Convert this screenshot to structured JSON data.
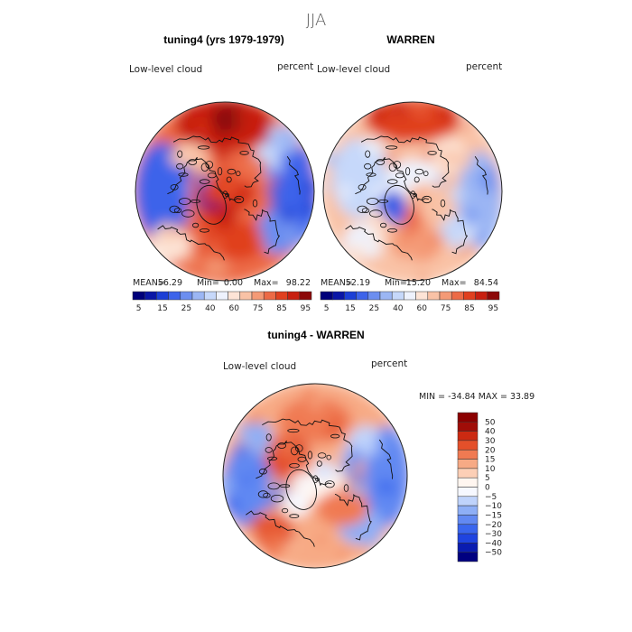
{
  "season": "JJA",
  "colors": {
    "seq": [
      "#00007a",
      "#0a16a6",
      "#1c3fd6",
      "#3d63ea",
      "#6c8ef0",
      "#9bb6f4",
      "#c6d8fa",
      "#eef2fd",
      "#fde4d6",
      "#f9c2a6",
      "#f49a76",
      "#ec6a46",
      "#e0401f",
      "#c81f10",
      "#8c0808"
    ],
    "diff": [
      "#000080",
      "#0a1cb0",
      "#1f44e0",
      "#3a66ee",
      "#6289f2",
      "#8eaff6",
      "#bfd3fb",
      "#f6f8ff",
      "#fff6f0",
      "#fccfb6",
      "#f7aa85",
      "#f07a52",
      "#e4502a",
      "#cc2a12",
      "#a00d08",
      "#8b0000"
    ]
  },
  "chart_data": [
    {
      "type": "heatmap",
      "projection": "polar-stereographic",
      "title": "tuning4 (yrs 1979-1979)",
      "variable": "Low-level cloud",
      "units": "percent",
      "stats": {
        "mean_label": "MEAN=",
        "mean": "56.29",
        "min_label": "Min=",
        "min": "0.00",
        "max_label": "Max=",
        "max": "98.22"
      },
      "colorbar_ticks": [
        "5",
        "15",
        "25",
        "40",
        "60",
        "75",
        "85",
        "95"
      ]
    },
    {
      "type": "heatmap",
      "projection": "polar-stereographic",
      "title": "WARREN",
      "variable": "Low-level cloud",
      "units": "percent",
      "stats": {
        "mean_label": "MEAN=",
        "mean": "52.19",
        "min_label": "Min=",
        "min": "15.20",
        "max_label": "Max=",
        "max": "84.54"
      },
      "colorbar_ticks": [
        "5",
        "15",
        "25",
        "40",
        "60",
        "75",
        "85",
        "95"
      ]
    },
    {
      "type": "heatmap",
      "projection": "polar-stereographic",
      "title": "tuning4 - WARREN",
      "variable": "Low-level cloud",
      "units": "percent",
      "range_label": "MIN = -34.84 MAX =  33.89",
      "colorbar_ticks": [
        "50",
        "40",
        "30",
        "20",
        "15",
        "10",
        "5",
        "0",
        "−5",
        "−10",
        "−15",
        "−20",
        "−30",
        "−40",
        "−50"
      ]
    }
  ]
}
